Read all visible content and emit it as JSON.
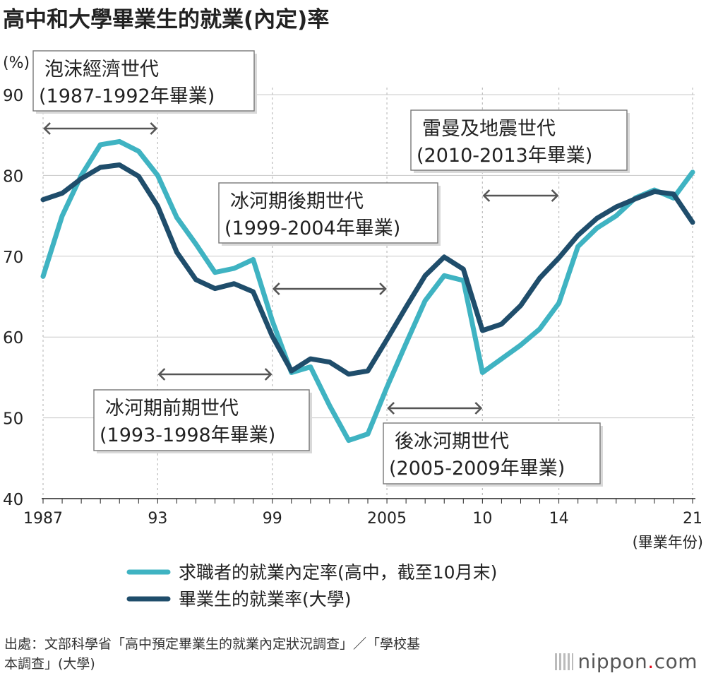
{
  "title": "高中和大學畢業生的就業(內定)率",
  "source_line1": "出處：文部科學省「高中預定畢業生的就業內定狀況調查」／「學校基",
  "source_line2": "本調查」(大學)",
  "logo": {
    "name": "nippon",
    "dot": ".",
    "tld": "com"
  },
  "chart_data": {
    "type": "line",
    "ylabel": "(%)",
    "xlabel": "(畢業年份)",
    "ylim": [
      40,
      90
    ],
    "yticks": [
      40,
      50,
      60,
      70,
      80,
      90
    ],
    "xlim": [
      1987,
      2021
    ],
    "xticks": [
      {
        "year": 1987,
        "label": "1987"
      },
      {
        "year": 1993,
        "label": "93"
      },
      {
        "year": 1999,
        "label": "99"
      },
      {
        "year": 2005,
        "label": "2005"
      },
      {
        "year": 2010,
        "label": "10"
      },
      {
        "year": 2014,
        "label": "14"
      },
      {
        "year": 2021,
        "label": "21"
      }
    ],
    "grid_x": [
      1987,
      1993,
      1999,
      2005,
      2010,
      2014,
      2021
    ],
    "series": [
      {
        "name": "求職者的就業內定率(高中，截至10月末)",
        "color": "#3fb3c2",
        "x": [
          1987,
          1988,
          1989,
          1990,
          1991,
          1992,
          1993,
          1994,
          1995,
          1996,
          1997,
          1998,
          1999,
          2000,
          2001,
          2002,
          2003,
          2004,
          2005,
          2006,
          2007,
          2008,
          2009,
          2010,
          2011,
          2012,
          2013,
          2014,
          2015,
          2016,
          2017,
          2018,
          2019,
          2020,
          2021
        ],
        "values": [
          67.5,
          75.0,
          80.0,
          83.8,
          84.2,
          83.0,
          80.0,
          74.8,
          71.5,
          68.0,
          68.5,
          69.6,
          62.0,
          55.6,
          56.3,
          51.5,
          47.2,
          48.0,
          53.8,
          59.2,
          64.5,
          67.6,
          67.0,
          55.6,
          57.3,
          59.0,
          61.0,
          64.2,
          71.2,
          73.5,
          75.0,
          77.2,
          78.2,
          77.2,
          80.4
        ]
      },
      {
        "name": "畢業生的就業率(大學)",
        "color": "#1f4d6b",
        "x": [
          1987,
          1988,
          1989,
          1990,
          1991,
          1992,
          1993,
          1994,
          1995,
          1996,
          1997,
          1998,
          1999,
          2000,
          2001,
          2002,
          2003,
          2004,
          2005,
          2006,
          2007,
          2008,
          2009,
          2010,
          2011,
          2012,
          2013,
          2014,
          2015,
          2016,
          2017,
          2018,
          2019,
          2020,
          2021
        ],
        "values": [
          77.0,
          77.8,
          79.6,
          81.0,
          81.3,
          79.9,
          76.2,
          70.5,
          67.1,
          66.0,
          66.6,
          65.6,
          60.1,
          55.8,
          57.3,
          56.9,
          55.4,
          55.8,
          59.7,
          63.7,
          67.6,
          69.9,
          68.4,
          60.8,
          61.6,
          63.9,
          67.3,
          69.8,
          72.6,
          74.7,
          76.1,
          77.1,
          78.0,
          77.7,
          74.2
        ]
      }
    ],
    "annotations": [
      {
        "line1": "泡沫經濟世代",
        "line2": "(1987-1992年畢業)",
        "from": 1987,
        "to": 1993
      },
      {
        "line1": "冰河期前期世代",
        "line2": "(1993-1998年畢業)",
        "from": 1993,
        "to": 1999
      },
      {
        "line1": "冰河期後期世代",
        "line2": "(1999-2004年畢業)",
        "from": 1999,
        "to": 2005
      },
      {
        "line1": "後冰河期世代",
        "line2": "(2005-2009年畢業)",
        "from": 2005,
        "to": 2010
      },
      {
        "line1": "雷曼及地震世代",
        "line2": "(2010-2013年畢業)",
        "from": 2010,
        "to": 2014
      }
    ]
  }
}
